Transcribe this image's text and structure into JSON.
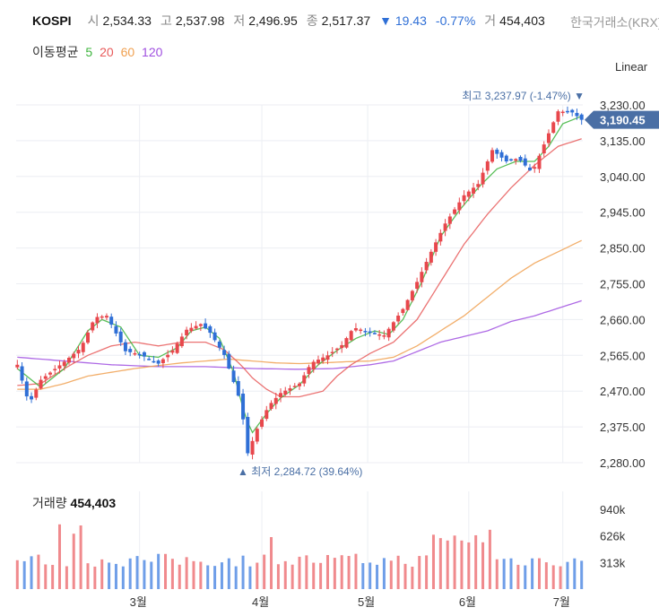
{
  "header": {
    "symbol": "KOSPI",
    "open_label": "시",
    "open": "2,534.33",
    "high_label": "고",
    "high": "2,537.98",
    "low_label": "저",
    "low": "2,496.95",
    "close_label": "종",
    "close": "2,517.37",
    "change": "▼ 19.43",
    "change_pct": "-0.77%",
    "volume_label": "거",
    "volume": "454,403",
    "exchange": "한국거래소(KRX)"
  },
  "moving_average": {
    "label": "이동평균",
    "periods": [
      {
        "period": "5",
        "color": "#3cb43c"
      },
      {
        "period": "20",
        "color": "#e85a5a"
      },
      {
        "period": "60",
        "color": "#f0a050"
      },
      {
        "period": "120",
        "color": "#a050e0"
      }
    ]
  },
  "scale_mode": "Linear",
  "colors": {
    "up": "#e8474c",
    "down": "#2f6fd6",
    "grid": "#eceef3",
    "price_tag": "#4a6fa5"
  },
  "chart_data": {
    "type": "candlestick",
    "x_labels": [
      "3월",
      "4월",
      "5월",
      "6월",
      "7월"
    ],
    "y_ticks": [
      2280,
      2375,
      2470,
      2565,
      2660,
      2755,
      2850,
      2945,
      3040,
      3135,
      3230
    ],
    "y_tick_labels": [
      "2,280.00",
      "2,375.00",
      "2,470.00",
      "2,565.00",
      "2,660.00",
      "2,755.00",
      "2,850.00",
      "2,945.00",
      "3,040.00",
      "3,135.00",
      "3,230.00"
    ],
    "ylim": [
      2280,
      3230
    ],
    "current_price": 3190.45,
    "current_price_label": "3,190.45",
    "high_annotation": "최고 3,237.97 (-1.47%) ▼",
    "low_annotation": "▲ 최저 2,284.72 (39.64%)",
    "price_points": [
      [
        0,
        2540
      ],
      [
        5,
        2435
      ],
      [
        10,
        2500
      ],
      [
        20,
        2548
      ],
      [
        27,
        2585
      ],
      [
        33,
        2666
      ],
      [
        38,
        2670
      ],
      [
        46,
        2576
      ],
      [
        52,
        2568
      ],
      [
        60,
        2543
      ],
      [
        66,
        2578
      ],
      [
        72,
        2633
      ],
      [
        78,
        2648
      ],
      [
        82,
        2625
      ],
      [
        88,
        2566
      ],
      [
        95,
        2440
      ],
      [
        98,
        2305
      ],
      [
        102,
        2370
      ],
      [
        107,
        2432
      ],
      [
        112,
        2465
      ],
      [
        120,
        2490
      ],
      [
        125,
        2545
      ],
      [
        132,
        2565
      ],
      [
        138,
        2592
      ],
      [
        143,
        2639
      ],
      [
        150,
        2626
      ],
      [
        156,
        2618
      ],
      [
        164,
        2688
      ],
      [
        170,
        2760
      ],
      [
        176,
        2840
      ],
      [
        182,
        2915
      ],
      [
        190,
        2990
      ],
      [
        196,
        3020
      ],
      [
        202,
        3110
      ],
      [
        208,
        3080
      ],
      [
        213,
        3088
      ],
      [
        219,
        3050
      ],
      [
        225,
        3140
      ],
      [
        230,
        3213
      ],
      [
        236,
        3210
      ],
      [
        240,
        3190.45
      ]
    ],
    "ma5": [
      [
        0,
        2530
      ],
      [
        10,
        2480
      ],
      [
        20,
        2530
      ],
      [
        30,
        2630
      ],
      [
        36,
        2660
      ],
      [
        44,
        2640
      ],
      [
        52,
        2565
      ],
      [
        60,
        2560
      ],
      [
        68,
        2585
      ],
      [
        74,
        2630
      ],
      [
        80,
        2640
      ],
      [
        86,
        2610
      ],
      [
        92,
        2520
      ],
      [
        97,
        2400
      ],
      [
        100,
        2360
      ],
      [
        106,
        2410
      ],
      [
        112,
        2452
      ],
      [
        120,
        2487
      ],
      [
        128,
        2540
      ],
      [
        136,
        2578
      ],
      [
        144,
        2610
      ],
      [
        152,
        2630
      ],
      [
        158,
        2620
      ],
      [
        164,
        2660
      ],
      [
        172,
        2760
      ],
      [
        180,
        2880
      ],
      [
        188,
        2950
      ],
      [
        196,
        3010
      ],
      [
        204,
        3060
      ],
      [
        212,
        3080
      ],
      [
        220,
        3080
      ],
      [
        226,
        3120
      ],
      [
        232,
        3180
      ],
      [
        240,
        3200
      ]
    ],
    "ma20": [
      [
        0,
        2485
      ],
      [
        10,
        2490
      ],
      [
        20,
        2530
      ],
      [
        30,
        2565
      ],
      [
        40,
        2590
      ],
      [
        50,
        2600
      ],
      [
        60,
        2590
      ],
      [
        70,
        2600
      ],
      [
        80,
        2600
      ],
      [
        88,
        2580
      ],
      [
        95,
        2540
      ],
      [
        100,
        2505
      ],
      [
        106,
        2475
      ],
      [
        112,
        2455
      ],
      [
        120,
        2455
      ],
      [
        130,
        2470
      ],
      [
        136,
        2510
      ],
      [
        142,
        2540
      ],
      [
        150,
        2570
      ],
      [
        160,
        2600
      ],
      [
        170,
        2660
      ],
      [
        180,
        2760
      ],
      [
        190,
        2860
      ],
      [
        200,
        2940
      ],
      [
        210,
        3010
      ],
      [
        220,
        3070
      ],
      [
        230,
        3120
      ],
      [
        240,
        3140
      ]
    ],
    "ma60": [
      [
        0,
        2475
      ],
      [
        10,
        2475
      ],
      [
        20,
        2490
      ],
      [
        30,
        2510
      ],
      [
        40,
        2520
      ],
      [
        50,
        2530
      ],
      [
        60,
        2538
      ],
      [
        70,
        2545
      ],
      [
        80,
        2550
      ],
      [
        90,
        2555
      ],
      [
        100,
        2550
      ],
      [
        110,
        2545
      ],
      [
        120,
        2543
      ],
      [
        130,
        2545
      ],
      [
        140,
        2548
      ],
      [
        150,
        2550
      ],
      [
        160,
        2560
      ],
      [
        170,
        2590
      ],
      [
        180,
        2630
      ],
      [
        190,
        2670
      ],
      [
        200,
        2720
      ],
      [
        210,
        2770
      ],
      [
        220,
        2810
      ],
      [
        230,
        2840
      ],
      [
        240,
        2870
      ]
    ],
    "ma120": [
      [
        0,
        2560
      ],
      [
        20,
        2550
      ],
      [
        40,
        2540
      ],
      [
        60,
        2535
      ],
      [
        80,
        2535
      ],
      [
        100,
        2530
      ],
      [
        120,
        2528
      ],
      [
        135,
        2530
      ],
      [
        150,
        2540
      ],
      [
        160,
        2550
      ],
      [
        170,
        2575
      ],
      [
        180,
        2600
      ],
      [
        190,
        2615
      ],
      [
        200,
        2630
      ],
      [
        210,
        2655
      ],
      [
        220,
        2670
      ],
      [
        230,
        2690
      ],
      [
        240,
        2710
      ]
    ],
    "volume_label": "거래량",
    "volume_value": "454,403",
    "volume_ticks": [
      313,
      626,
      940
    ],
    "volume_tick_labels": [
      "313k",
      "626k",
      "940k"
    ],
    "volume_ylim": [
      0,
      1150
    ]
  }
}
